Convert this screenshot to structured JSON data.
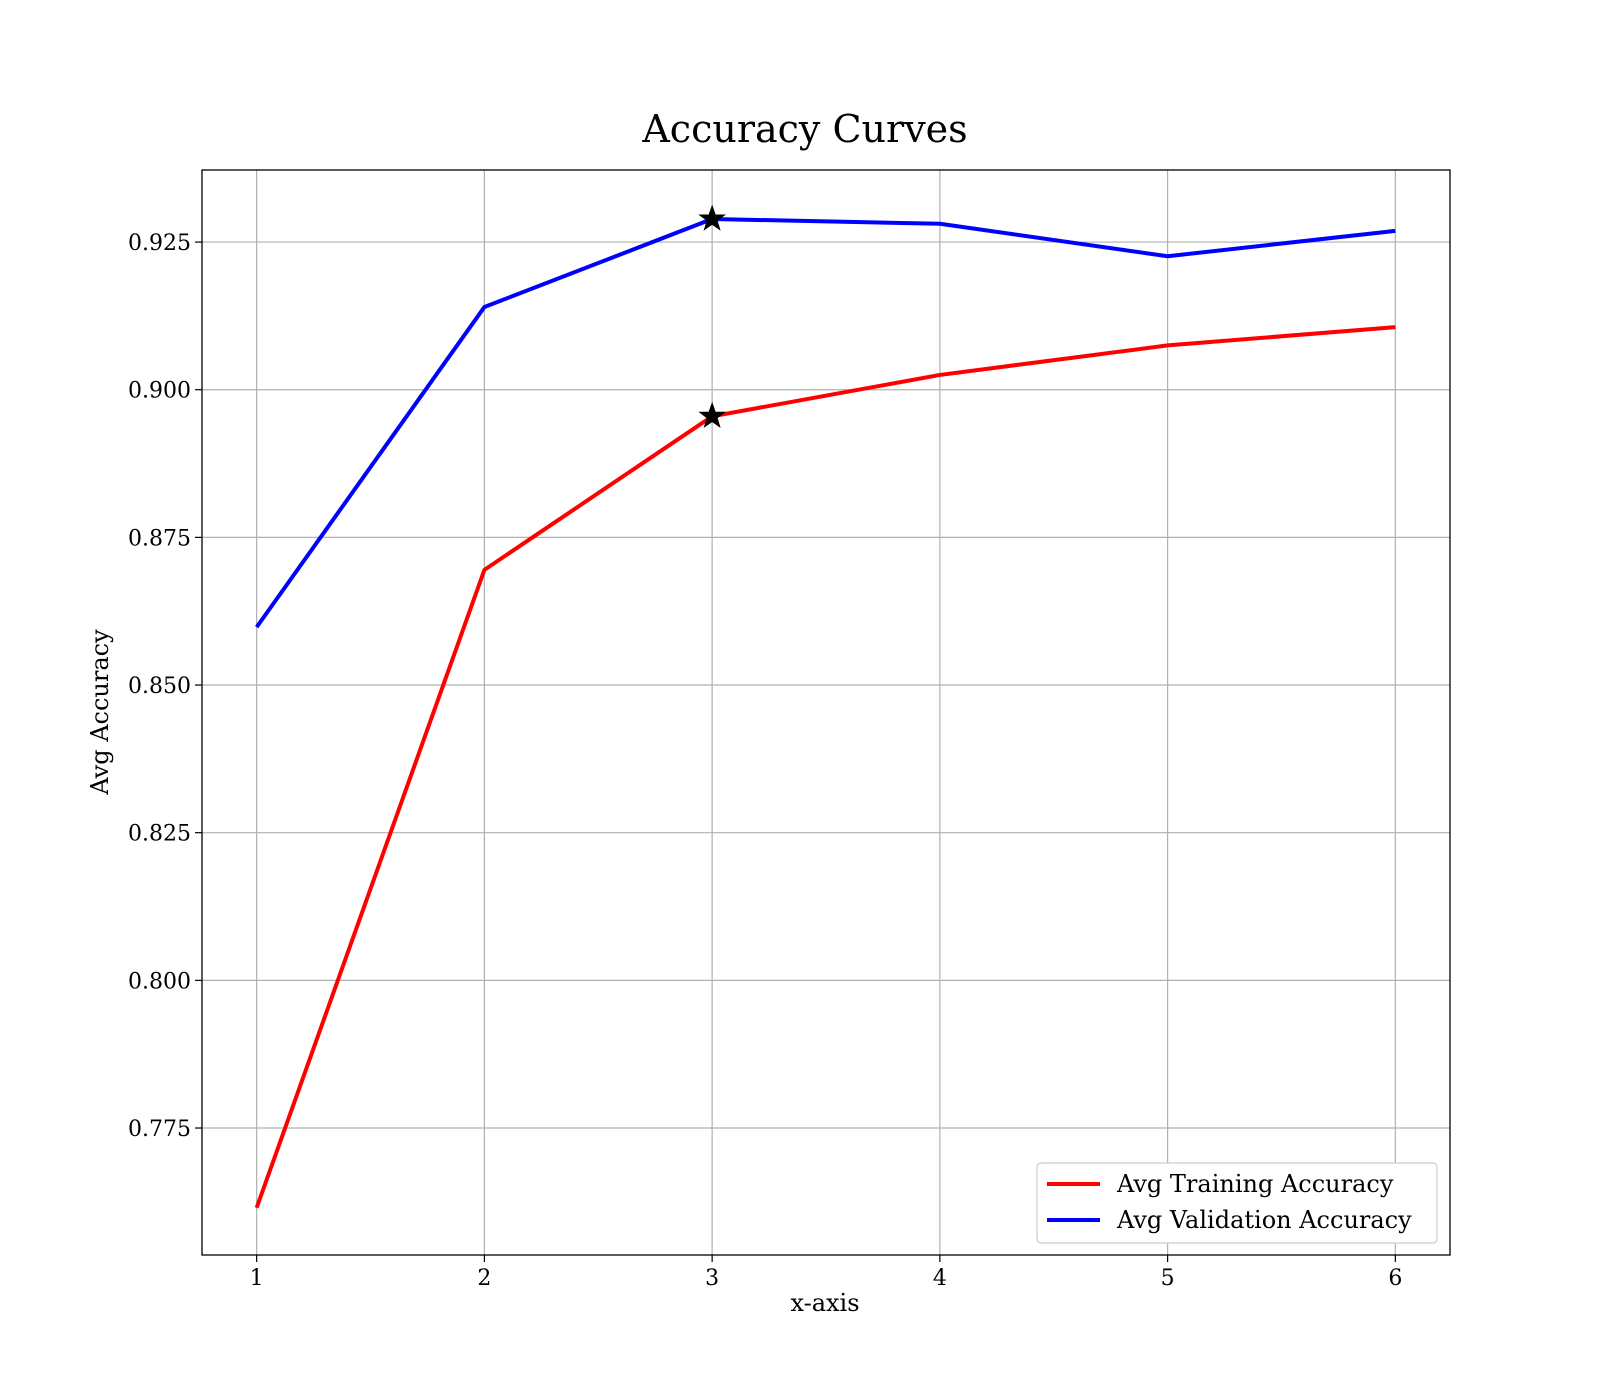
{
  "chart_data": {
    "type": "line",
    "title": "Accuracy Curves",
    "xlabel": "x-axis",
    "ylabel": "Avg Accuracy",
    "x": [
      1,
      2,
      3,
      4,
      5,
      6
    ],
    "xticks": [
      "1",
      "2",
      "3",
      "4",
      "5",
      "6"
    ],
    "xlim": [
      0.76,
      6.24
    ],
    "yticks": [
      "0.775",
      "0.800",
      "0.825",
      "0.850",
      "0.875",
      "0.900",
      "0.925"
    ],
    "ylim": [
      0.7535,
      0.9372
    ],
    "grid": true,
    "legend_position": "lower-right",
    "series": [
      {
        "name": "Avg Training Accuracy",
        "color": "#ff0000",
        "values": [
          0.7615,
          0.8695,
          0.8955,
          0.9025,
          0.9075,
          0.9106
        ],
        "marker": {
          "x": 3,
          "y": 0.8955,
          "symbol": "star"
        }
      },
      {
        "name": "Avg Validation Accuracy",
        "color": "#0000ff",
        "values": [
          0.8598,
          0.914,
          0.9289,
          0.9281,
          0.9226,
          0.9269
        ],
        "marker": {
          "x": 3,
          "y": 0.9289,
          "symbol": "star"
        }
      }
    ]
  }
}
